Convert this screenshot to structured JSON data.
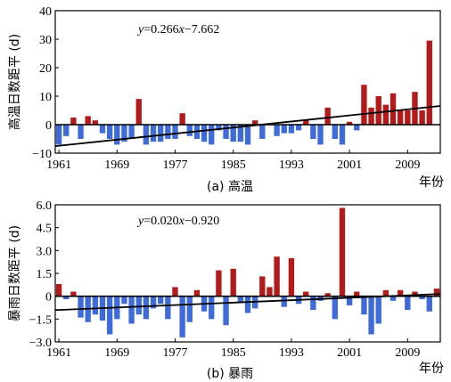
{
  "chart_data": [
    {
      "type": "bar",
      "caption": "(a) 高温",
      "ylabel": "高温日数距平 (d)",
      "xunit": "年份",
      "equation": {
        "y": "y",
        "eq": "=0.266",
        "x": "x",
        "rest": "−7.662"
      },
      "trend": {
        "slope": 0.266,
        "intercept": -7.662
      },
      "ylim": [
        -10,
        40
      ],
      "yticks": [
        -10,
        0,
        10,
        20,
        30,
        40
      ],
      "ytick_labels": [
        "−10",
        "0",
        "10",
        "20",
        "30",
        "40"
      ],
      "xticks": [
        1961,
        1969,
        1977,
        1985,
        1993,
        2001,
        2009
      ],
      "x": [
        1961,
        1962,
        1963,
        1964,
        1965,
        1966,
        1967,
        1968,
        1969,
        1970,
        1971,
        1972,
        1973,
        1974,
        1975,
        1976,
        1977,
        1978,
        1979,
        1980,
        1981,
        1982,
        1983,
        1984,
        1985,
        1986,
        1987,
        1988,
        1989,
        1990,
        1991,
        1992,
        1993,
        1994,
        1995,
        1996,
        1997,
        1998,
        1999,
        2000,
        2001,
        2002,
        2003,
        2004,
        2005,
        2006,
        2007,
        2008,
        2009,
        2010,
        2011,
        2012,
        2013
      ],
      "values": [
        -7,
        -4,
        2.5,
        -5,
        3,
        1.5,
        -3,
        -5,
        -7,
        -6,
        -5,
        9,
        -7,
        -6,
        -6,
        -5,
        -5,
        4,
        -4,
        -5,
        -6,
        -7,
        -2,
        -5,
        -6,
        -6,
        -7,
        1.5,
        -5,
        0,
        -4,
        -3,
        -3,
        -2,
        1.5,
        -5,
        -7,
        6,
        -5,
        -7,
        1,
        -2,
        14,
        6,
        10,
        7,
        11,
        5,
        5,
        11.5,
        5,
        29.5,
        0
      ],
      "colors": {
        "positive": "#b31a1a",
        "negative": "#3f6bd9",
        "trend": "#000000"
      }
    },
    {
      "type": "bar",
      "caption": "(b) 暴雨",
      "ylabel": "暴雨日数距平 (d)",
      "xunit": "年份",
      "equation": {
        "y": "y",
        "eq": "=0.020",
        "x": "x",
        "rest": "−0.920"
      },
      "trend": {
        "slope": 0.02,
        "intercept": -0.92
      },
      "ylim": [
        -3.0,
        6.0
      ],
      "yticks": [
        -3.0,
        -1.5,
        0,
        1.5,
        3.0,
        4.5,
        6.0
      ],
      "ytick_labels": [
        "−3.0",
        "−1.5",
        "0",
        "1.5",
        "3.0",
        "4.5",
        "6.0"
      ],
      "xticks": [
        1961,
        1969,
        1977,
        1985,
        1993,
        2001,
        2009
      ],
      "x": [
        1961,
        1962,
        1963,
        1964,
        1965,
        1966,
        1967,
        1968,
        1969,
        1970,
        1971,
        1972,
        1973,
        1974,
        1975,
        1976,
        1977,
        1978,
        1979,
        1980,
        1981,
        1982,
        1983,
        1984,
        1985,
        1986,
        1987,
        1988,
        1989,
        1990,
        1991,
        1992,
        1993,
        1994,
        1995,
        1996,
        1997,
        1998,
        1999,
        2000,
        2001,
        2002,
        2003,
        2004,
        2005,
        2006,
        2007,
        2008,
        2009,
        2010,
        2011,
        2012,
        2013
      ],
      "values": [
        0.8,
        -0.2,
        0.3,
        -1.4,
        -1.7,
        -1.2,
        -1.6,
        -2.5,
        -1.5,
        -0.5,
        -1.8,
        -1.2,
        -1.5,
        -0.8,
        -0.5,
        -1.5,
        0.6,
        -2.7,
        -1.7,
        0.4,
        -1.0,
        -1.5,
        1.7,
        -1.9,
        1.8,
        -0.4,
        -1.1,
        -0.8,
        1.3,
        0.6,
        2.6,
        -0.7,
        2.5,
        -0.5,
        0.3,
        -0.9,
        -0.3,
        0.2,
        -1.5,
        5.8,
        -0.6,
        0.3,
        -1.2,
        -2.5,
        -1.8,
        0.4,
        -0.3,
        0.4,
        -0.9,
        0.3,
        -0.2,
        -1.0,
        0.5
      ],
      "colors": {
        "positive": "#b31a1a",
        "negative": "#3f6bd9",
        "trend": "#000000"
      }
    }
  ]
}
